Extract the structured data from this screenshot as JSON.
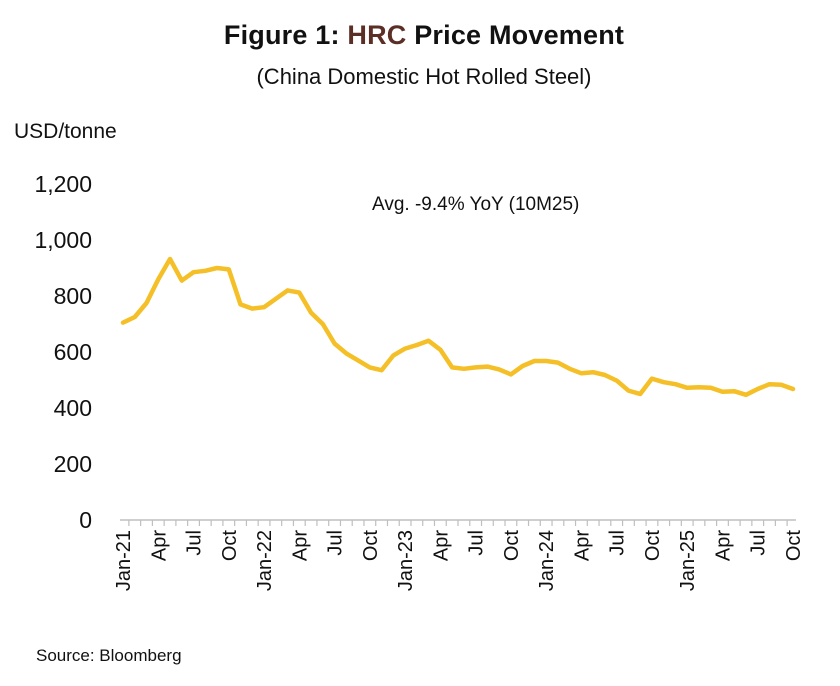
{
  "header": {
    "title_prefix": "Figure 1: ",
    "title_highlight": "HRC",
    "title_suffix": " Price Movement",
    "subtitle": "(China Domestic Hot Rolled Steel)"
  },
  "source": "Source: Bloomberg",
  "chart_data": {
    "type": "line",
    "title": "Figure 1: HRC Price Movement",
    "subtitle": "(China Domestic Hot Rolled Steel)",
    "ylabel": "USD/tonne",
    "xlabel": "",
    "ylim": [
      0,
      1200
    ],
    "yticks": [
      0,
      200,
      400,
      600,
      800,
      1000,
      1200
    ],
    "ytick_labels": [
      "0",
      "200",
      "400",
      "600",
      "800",
      "1,000",
      "1,200"
    ],
    "xtick_labels": [
      "Jan-21",
      "Apr",
      "Jul",
      "Oct",
      "Jan-22",
      "Apr",
      "Jul",
      "Oct",
      "Jan-23",
      "Apr",
      "Jul",
      "Oct",
      "Jan-24",
      "Apr",
      "Jul",
      "Oct",
      "Jan-25",
      "Apr",
      "Jul",
      "Oct"
    ],
    "grid": false,
    "legend": "none",
    "line_color": "#f5bf27",
    "annotation": "Avg. -9.4% YoY (10M25)",
    "x": [
      "Jan-21",
      "Feb-21",
      "Mar-21",
      "Apr-21",
      "May-21",
      "Jun-21",
      "Jul-21",
      "Aug-21",
      "Sep-21",
      "Oct-21",
      "Nov-21",
      "Dec-21",
      "Jan-22",
      "Feb-22",
      "Mar-22",
      "Apr-22",
      "May-22",
      "Jun-22",
      "Jul-22",
      "Aug-22",
      "Sep-22",
      "Oct-22",
      "Nov-22",
      "Dec-22",
      "Jan-23",
      "Feb-23",
      "Mar-23",
      "Apr-23",
      "May-23",
      "Jun-23",
      "Jul-23",
      "Aug-23",
      "Sep-23",
      "Oct-23",
      "Nov-23",
      "Dec-23",
      "Jan-24",
      "Feb-24",
      "Mar-24",
      "Apr-24",
      "May-24",
      "Jun-24",
      "Jul-24",
      "Aug-24",
      "Sep-24",
      "Oct-24",
      "Nov-24",
      "Dec-24",
      "Jan-25",
      "Feb-25",
      "Mar-25",
      "Apr-25",
      "May-25",
      "Jun-25",
      "Jul-25",
      "Aug-25",
      "Sep-25",
      "Oct-25"
    ],
    "series": [
      {
        "values": [
          705,
          725,
          775,
          860,
          932,
          855,
          885,
          890,
          900,
          895,
          770,
          755,
          760,
          790,
          820,
          812,
          740,
          700,
          630,
          595,
          570,
          545,
          535,
          588,
          612,
          625,
          640,
          608,
          545,
          540,
          545,
          548,
          538,
          520,
          550,
          568,
          568,
          562,
          540,
          524,
          528,
          518,
          498,
          462,
          450,
          505,
          492,
          485,
          472,
          474,
          472,
          458,
          460,
          447,
          468,
          485,
          483,
          468
        ]
      }
    ]
  }
}
